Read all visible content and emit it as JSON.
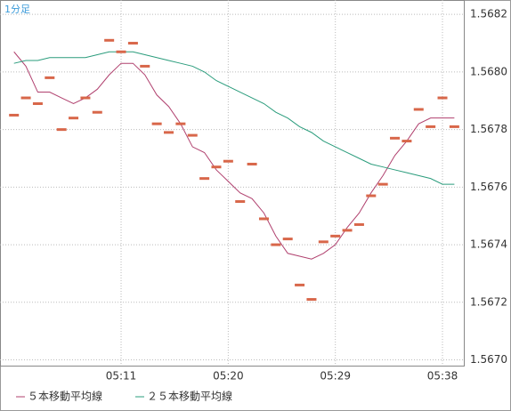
{
  "chart_data": {
    "type": "line",
    "label": "1分足",
    "categories": [
      null,
      null,
      null,
      null,
      null,
      null,
      null,
      null,
      null,
      "05:11",
      null,
      null,
      null,
      null,
      null,
      null,
      null,
      null,
      "05:20",
      null,
      null,
      null,
      null,
      null,
      null,
      null,
      null,
      "05:29",
      null,
      null,
      null,
      null,
      null,
      null,
      null,
      null,
      "05:38",
      null
    ],
    "values": [
      1.56785,
      1.56791,
      1.56789,
      1.56798,
      1.5678,
      1.56784,
      1.56791,
      1.56786,
      1.56811,
      1.56807,
      1.5681,
      1.56802,
      1.56782,
      1.56779,
      1.56782,
      1.56778,
      1.56763,
      1.56767,
      1.56769,
      1.56755,
      1.56768,
      1.56749,
      1.5674,
      1.56742,
      1.56726,
      1.56721,
      1.56741,
      1.56743,
      1.56745,
      1.56747,
      1.56757,
      1.56761,
      1.56777,
      1.56776,
      1.56787,
      1.56781,
      1.56791,
      1.56781
    ],
    "color": "#d8674a",
    "series": [
      {
        "name": "５本移動平均線",
        "color": "#b0406e",
        "values": [
          1.56807,
          1.56802,
          1.56793,
          1.56793,
          1.56791,
          1.56789,
          1.56791,
          1.56794,
          1.56799,
          1.56803,
          1.56803,
          1.56799,
          1.56792,
          1.56788,
          1.56782,
          1.56774,
          1.56772,
          1.56766,
          1.56762,
          1.56758,
          1.56756,
          1.56751,
          1.56743,
          1.56737,
          1.56736,
          1.56735,
          1.56737,
          1.5674,
          1.56746,
          1.56751,
          1.56758,
          1.56764,
          1.56771,
          1.56776,
          1.56782,
          1.56784,
          1.56784,
          1.56784
        ]
      },
      {
        "name": "２５本移動平均線",
        "color": "#2a9c7c",
        "values": [
          1.56803,
          1.56804,
          1.56804,
          1.56805,
          1.56805,
          1.56805,
          1.56805,
          1.56806,
          1.56807,
          1.56807,
          1.56807,
          1.56806,
          1.56805,
          1.56804,
          1.56803,
          1.56802,
          1.568,
          1.56797,
          1.56795,
          1.56793,
          1.56791,
          1.56789,
          1.56786,
          1.56784,
          1.56781,
          1.56779,
          1.56776,
          1.56774,
          1.56772,
          1.5677,
          1.56768,
          1.56767,
          1.56766,
          1.56765,
          1.56764,
          1.56763,
          1.56761,
          1.56761
        ]
      }
    ],
    "ylim": [
      1.56698,
      1.56825
    ],
    "yticks": [
      {
        "value": 1.567,
        "label": "1.5670"
      },
      1.5672,
      1.5674,
      1.5676,
      1.5678,
      {
        "value": 1.568,
        "label": "1.5680"
      },
      1.5682
    ],
    "grid": true
  }
}
